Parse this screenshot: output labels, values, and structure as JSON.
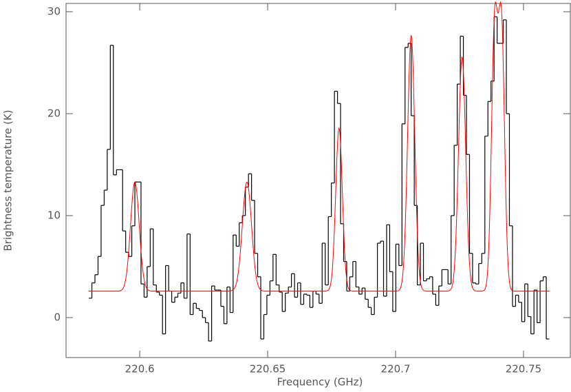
{
  "chart_data": {
    "type": "step",
    "xlabel": "Frequency (GHz)",
    "ylabel": "Brightness temperature (K)",
    "xlim": [
      220.5712,
      220.7683
    ],
    "ylim": [
      -3.92,
      30.81
    ],
    "xticks": [
      220.6,
      220.65,
      220.7,
      220.75
    ],
    "yticks": [
      0,
      10,
      20,
      30
    ],
    "x": [
      220.5807,
      220.5819,
      220.5831,
      220.5843,
      220.5855,
      220.5867,
      220.5879,
      220.5891,
      220.5903,
      220.5915,
      220.5927,
      220.5939,
      220.5951,
      220.5963,
      220.5975,
      220.5987,
      220.5999,
      220.6011,
      220.6023,
      220.6035,
      220.6047,
      220.6059,
      220.6071,
      220.6083,
      220.6095,
      220.6107,
      220.6119,
      220.6131,
      220.6143,
      220.6155,
      220.6167,
      220.6179,
      220.6191,
      220.6203,
      220.6215,
      220.6227,
      220.6239,
      220.6251,
      220.6263,
      220.6275,
      220.6287,
      220.6299,
      220.6311,
      220.6323,
      220.6335,
      220.6347,
      220.6359,
      220.6371,
      220.6383,
      220.6395,
      220.6407,
      220.6419,
      220.6431,
      220.6443,
      220.6455,
      220.6467,
      220.6479,
      220.6491,
      220.6503,
      220.6515,
      220.6527,
      220.6539,
      220.6551,
      220.6563,
      220.6575,
      220.6587,
      220.6599,
      220.6611,
      220.6623,
      220.6635,
      220.6647,
      220.6659,
      220.6671,
      220.6683,
      220.6695,
      220.6707,
      220.6719,
      220.6731,
      220.6743,
      220.6755,
      220.6767,
      220.6779,
      220.6791,
      220.6803,
      220.6815,
      220.6827,
      220.6839,
      220.6851,
      220.6863,
      220.6875,
      220.6887,
      220.6899,
      220.6911,
      220.6923,
      220.6935,
      220.6947,
      220.6959,
      220.6971,
      220.6983,
      220.6995,
      220.7007,
      220.7019,
      220.7031,
      220.7043,
      220.7055,
      220.7067,
      220.7079,
      220.7091,
      220.7103,
      220.7115,
      220.7127,
      220.7139,
      220.7151,
      220.7163,
      220.7175,
      220.7187,
      220.7199,
      220.7211,
      220.7223,
      220.7235,
      220.7247,
      220.7259,
      220.7271,
      220.7283,
      220.7295,
      220.7307,
      220.7319,
      220.7331,
      220.7343,
      220.7355,
      220.7367,
      220.7379,
      220.7391,
      220.7403,
      220.7415,
      220.7427,
      220.7439,
      220.7451,
      220.7463,
      220.7475,
      220.7487,
      220.7499,
      220.7511,
      220.7523,
      220.7535,
      220.7547,
      220.7559,
      220.7571,
      220.7583,
      220.7595
    ],
    "series": [
      {
        "name": "spectrum",
        "color": "#000000",
        "values": [
          1.9,
          3.4,
          4.2,
          6.0,
          11.0,
          12.5,
          16.5,
          26.7,
          14.0,
          14.5,
          14.5,
          8.5,
          6.4,
          6.0,
          9.0,
          13.3,
          13.3,
          3.3,
          2.0,
          5.0,
          8.7,
          3.2,
          2.5,
          2.2,
          -1.6,
          5.1,
          2.6,
          1.5,
          2.0,
          2.4,
          3.4,
          1.9,
          8.2,
          0.3,
          1.4,
          0.9,
          0.7,
          0.0,
          -0.5,
          -2.3,
          3.1,
          2.7,
          2.7,
          1.1,
          -0.6,
          3.0,
          0.5,
          8.1,
          7.0,
          9.3,
          10.0,
          12.8,
          14.1,
          11.5,
          6.3,
          4.0,
          -2.1,
          0.3,
          2.2,
          3.6,
          6.2,
          3.2,
          2.5,
          0.6,
          2.4,
          3.0,
          4.3,
          2.0,
          3.4,
          1.3,
          2.3,
          2.2,
          1.0,
          2.6,
          2.3,
          1.4,
          7.3,
          3.2,
          9.9,
          13.2,
          22.2,
          21.0,
          9.2,
          5.5,
          2.6,
          4.0,
          5.5,
          3.0,
          2.3,
          2.9,
          1.8,
          1.0,
          0.3,
          2.0,
          7.3,
          7.5,
          2.1,
          9.1,
          4.5,
          0.6,
          7.2,
          5.1,
          19.0,
          26.5,
          26.9,
          19.8,
          11.0,
          3.2,
          7.3,
          3.6,
          3.8,
          4.0,
          2.3,
          1.2,
          3.1,
          4.7,
          4.7,
          3.3,
          10.0,
          16.9,
          22.9,
          27.6,
          21.8,
          16.0,
          6.3,
          3.4,
          3.3,
          5.3,
          6.3,
          17.8,
          21.2,
          23.2,
          29.5,
          26.9,
          26.9,
          29.2,
          20.0,
          9.0,
          1.1,
          2.2,
          1.5,
          -0.4,
          3.3,
          0.1,
          -1.6,
          2.7,
          -0.5,
          3.6,
          4.0,
          -2.1
        ]
      }
    ],
    "fit": {
      "color": "#ff0000",
      "baseline": 2.6,
      "components": [
        {
          "center": 220.5981,
          "amplitude": 10.7,
          "sigma": 0.0017
        },
        {
          "center": 220.6419,
          "amplitude": 10.7,
          "sigma": 0.0018
        },
        {
          "center": 220.6779,
          "amplitude": 16.0,
          "sigma": 0.0013
        },
        {
          "center": 220.7061,
          "amplitude": 25.1,
          "sigma": 0.0014
        },
        {
          "center": 220.726,
          "amplitude": 23.0,
          "sigma": 0.0014
        },
        {
          "center": 220.7387,
          "amplitude": 25.66,
          "sigma": 0.0012
        },
        {
          "center": 220.7414,
          "amplitude": 25.66,
          "sigma": 0.0012
        }
      ]
    }
  }
}
